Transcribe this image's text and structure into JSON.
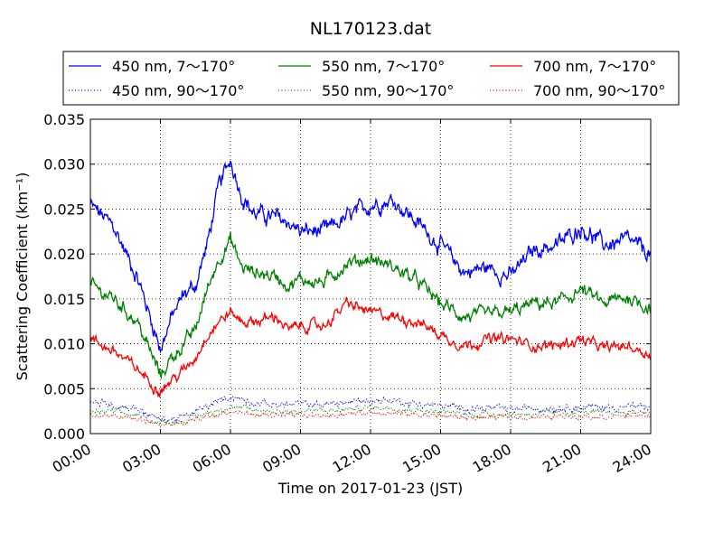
{
  "chart_data": {
    "type": "line",
    "title": "NL170123.dat",
    "xlabel": "Time on 2017-01-23 (JST)",
    "ylabel": "Scattering Coefficient (km⁻¹)",
    "xlim": [
      0,
      24
    ],
    "ylim": [
      0,
      0.035
    ],
    "xticks": [
      {
        "value": 0,
        "label": "00:00"
      },
      {
        "value": 3,
        "label": "03:00"
      },
      {
        "value": 6,
        "label": "06:00"
      },
      {
        "value": 9,
        "label": "09:00"
      },
      {
        "value": 12,
        "label": "12:00"
      },
      {
        "value": 15,
        "label": "15:00"
      },
      {
        "value": 18,
        "label": "18:00"
      },
      {
        "value": 21,
        "label": "21:00"
      },
      {
        "value": 24,
        "label": "24:00"
      }
    ],
    "yticks": [
      {
        "value": 0,
        "label": "0.000"
      },
      {
        "value": 0.005,
        "label": "0.005"
      },
      {
        "value": 0.01,
        "label": "0.010"
      },
      {
        "value": 0.015,
        "label": "0.015"
      },
      {
        "value": 0.02,
        "label": "0.020"
      },
      {
        "value": 0.025,
        "label": "0.025"
      },
      {
        "value": 0.03,
        "label": "0.030"
      },
      {
        "value": 0.035,
        "label": "0.035"
      }
    ],
    "grid": true,
    "legend_position": "top",
    "series": [
      {
        "name": "450 nm, 7～170°",
        "color": "#0000ff",
        "style": "solid",
        "noise": 0.0006,
        "x": [
          0,
          1,
          2,
          2.5,
          3,
          3.5,
          4,
          4.5,
          5,
          5.5,
          6,
          6.5,
          7,
          8,
          8.5,
          9,
          10,
          11,
          12,
          13,
          14,
          15,
          16,
          17,
          18,
          19,
          20,
          21,
          22,
          23,
          24
        ],
        "y": [
          0.0255,
          0.023,
          0.0175,
          0.0135,
          0.0095,
          0.013,
          0.0155,
          0.0165,
          0.021,
          0.0275,
          0.0305,
          0.0265,
          0.0245,
          0.024,
          0.0235,
          0.0225,
          0.0225,
          0.024,
          0.0255,
          0.026,
          0.0235,
          0.021,
          0.018,
          0.0185,
          0.0175,
          0.0205,
          0.021,
          0.023,
          0.021,
          0.0215,
          0.02
        ]
      },
      {
        "name": "550 nm, 7～170°",
        "color": "#008000",
        "style": "solid",
        "noise": 0.0005,
        "x": [
          0,
          1,
          2,
          2.5,
          3,
          3.5,
          4,
          4.5,
          5,
          5.5,
          6,
          6.5,
          7,
          8,
          8.5,
          9,
          10,
          11,
          12,
          13,
          14,
          15,
          16,
          17,
          18,
          19,
          20,
          21,
          22,
          23,
          24
        ],
        "y": [
          0.0165,
          0.015,
          0.0125,
          0.0095,
          0.0065,
          0.0085,
          0.01,
          0.0115,
          0.016,
          0.0195,
          0.0215,
          0.0185,
          0.018,
          0.0175,
          0.0165,
          0.0172,
          0.0168,
          0.019,
          0.0195,
          0.0185,
          0.017,
          0.0145,
          0.013,
          0.0132,
          0.0135,
          0.0145,
          0.0145,
          0.016,
          0.0145,
          0.0152,
          0.014
        ]
      },
      {
        "name": "700 nm, 7～170°",
        "color": "#ff0000",
        "style": "solid",
        "noise": 0.0004,
        "x": [
          0,
          1,
          2,
          2.5,
          3,
          3.5,
          4,
          4.5,
          5,
          5.5,
          6,
          6.5,
          7,
          8,
          8.5,
          9,
          10,
          11,
          12,
          13,
          14,
          15,
          16,
          17,
          18,
          19,
          20,
          21,
          22,
          23,
          24
        ],
        "y": [
          0.0105,
          0.0092,
          0.0072,
          0.006,
          0.0048,
          0.006,
          0.007,
          0.0085,
          0.011,
          0.0125,
          0.0135,
          0.0125,
          0.0125,
          0.013,
          0.0115,
          0.012,
          0.012,
          0.0145,
          0.0135,
          0.013,
          0.0125,
          0.011,
          0.0098,
          0.0105,
          0.0105,
          0.0098,
          0.0098,
          0.0105,
          0.0095,
          0.0098,
          0.0088
        ]
      },
      {
        "name": "450 nm, 90～170°",
        "color": "#0000ff",
        "style": "dotted",
        "noise": 0.00025,
        "x": [
          0,
          1,
          2,
          3,
          4,
          5,
          6,
          7,
          8,
          9,
          10,
          11,
          12,
          13,
          14,
          15,
          16,
          17,
          18,
          19,
          20,
          21,
          22,
          23,
          24
        ],
        "y": [
          0.0035,
          0.0032,
          0.0028,
          0.0015,
          0.0018,
          0.003,
          0.0042,
          0.0035,
          0.0032,
          0.0033,
          0.0032,
          0.0035,
          0.0037,
          0.0037,
          0.0033,
          0.0031,
          0.0028,
          0.0028,
          0.0027,
          0.0028,
          0.0029,
          0.003,
          0.0029,
          0.003,
          0.003
        ]
      },
      {
        "name": "550 nm, 90～170°",
        "color": "#008000",
        "style": "dotted",
        "noise": 0.0002,
        "x": [
          0,
          1,
          2,
          3,
          4,
          5,
          6,
          7,
          8,
          9,
          10,
          11,
          12,
          13,
          14,
          15,
          16,
          17,
          18,
          19,
          20,
          21,
          22,
          23,
          24
        ],
        "y": [
          0.0025,
          0.0024,
          0.002,
          0.0012,
          0.0014,
          0.0023,
          0.003,
          0.0026,
          0.0025,
          0.0025,
          0.0025,
          0.0027,
          0.0029,
          0.0029,
          0.0026,
          0.0024,
          0.0022,
          0.0022,
          0.0022,
          0.0022,
          0.0023,
          0.0024,
          0.0023,
          0.0024,
          0.0024
        ]
      },
      {
        "name": "700 nm, 90～170°",
        "color": "#ff0000",
        "style": "dotted",
        "noise": 0.00018,
        "x": [
          0,
          1,
          2,
          3,
          4,
          5,
          6,
          7,
          8,
          9,
          10,
          11,
          12,
          13,
          14,
          15,
          16,
          17,
          18,
          19,
          20,
          21,
          22,
          23,
          24
        ],
        "y": [
          0.002,
          0.0019,
          0.0016,
          0.001,
          0.0011,
          0.0019,
          0.0024,
          0.0021,
          0.002,
          0.002,
          0.002,
          0.0022,
          0.0024,
          0.0023,
          0.0021,
          0.002,
          0.0018,
          0.0018,
          0.0018,
          0.0018,
          0.0019,
          0.002,
          0.0019,
          0.002,
          0.002
        ]
      }
    ],
    "legend_order": [
      0,
      3,
      1,
      4,
      2,
      5
    ]
  }
}
